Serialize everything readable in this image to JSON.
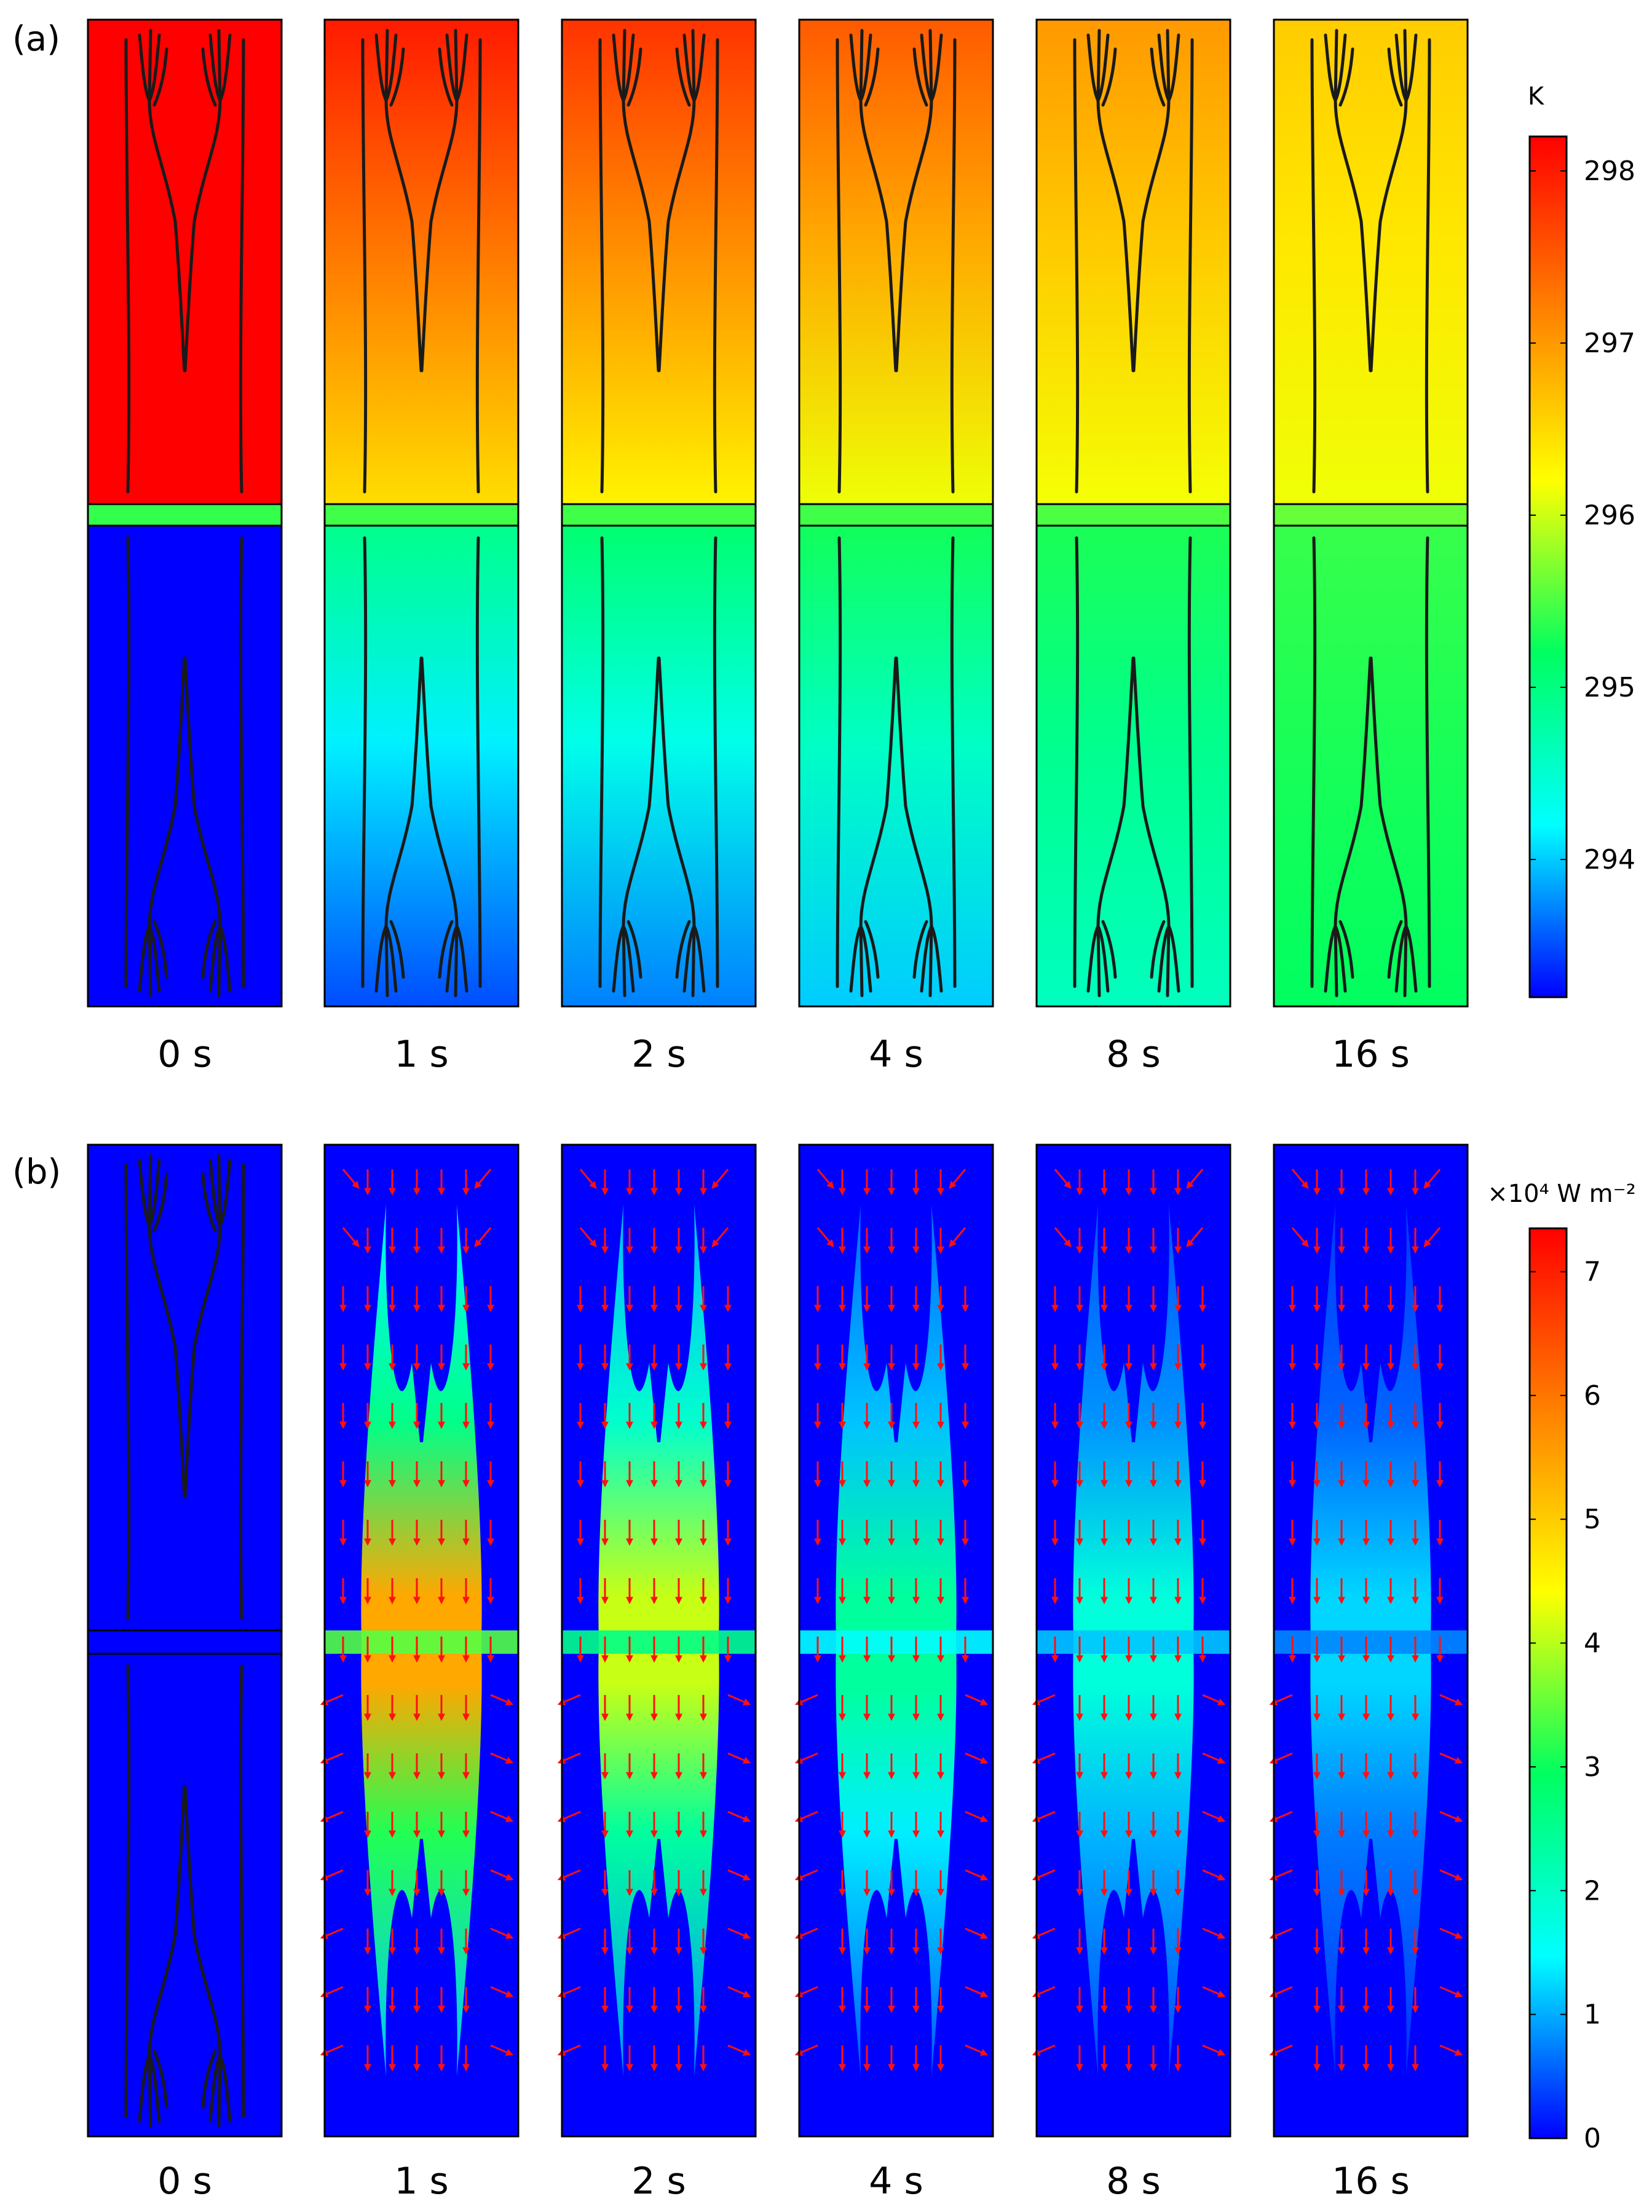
{
  "panels": [
    {
      "label": "(a)",
      "quantity": "temperature",
      "colorbar": {
        "unit": "K",
        "ticks": [
          "298",
          "297",
          "296",
          "295",
          "294"
        ],
        "tick_values": [
          298,
          297,
          296,
          295,
          294
        ],
        "min": 293.2,
        "max": 298.2
      },
      "frames": [
        {
          "time": "0 s",
          "t": 0,
          "T_hot": 298.2,
          "T_cold": 293.2,
          "hot_grad": 0.0,
          "cold_grad": 0.0
        },
        {
          "time": "1 s",
          "t": 1,
          "T_hot": 298.0,
          "T_cold": 293.5,
          "hot_grad": 0.55,
          "cold_grad": 0.55
        },
        {
          "time": "2 s",
          "t": 2,
          "T_hot": 297.8,
          "T_cold": 293.7,
          "hot_grad": 0.6,
          "cold_grad": 0.6
        },
        {
          "time": "4 s",
          "t": 4,
          "T_hot": 297.5,
          "T_cold": 294.0,
          "hot_grad": 0.65,
          "cold_grad": 0.65
        },
        {
          "time": "8 s",
          "t": 8,
          "T_hot": 297.0,
          "T_cold": 294.6,
          "hot_grad": 0.6,
          "cold_grad": 0.6
        },
        {
          "time": "16 s",
          "t": 16,
          "T_hot": 296.6,
          "T_cold": 295.2,
          "hot_grad": 0.55,
          "cold_grad": 0.55
        }
      ]
    },
    {
      "label": "(b)",
      "quantity": "heat flux",
      "colorbar": {
        "unit": "×10⁴ W m⁻²",
        "ticks": [
          "7",
          "6",
          "5",
          "4",
          "3",
          "2",
          "1",
          "0"
        ],
        "tick_values": [
          7,
          6,
          5,
          4,
          3,
          2,
          1,
          0
        ],
        "min": 0,
        "max": 7.35
      },
      "frames": [
        {
          "time": "0 s",
          "t": 0,
          "peak_flux": 0.0,
          "arrows": false
        },
        {
          "time": "1 s",
          "t": 1,
          "peak_flux": 5.7,
          "arrows": true
        },
        {
          "time": "2 s",
          "t": 2,
          "peak_flux": 4.3,
          "arrows": true
        },
        {
          "time": "4 s",
          "t": 4,
          "peak_flux": 2.5,
          "arrows": true
        },
        {
          "time": "8 s",
          "t": 8,
          "peak_flux": 1.9,
          "arrows": true
        },
        {
          "time": "16 s",
          "t": 16,
          "peak_flux": 1.3,
          "arrows": true
        }
      ]
    }
  ],
  "colors": {
    "colormap": [
      "#0000ff",
      "#00ffff",
      "#00ff60",
      "#ffff00",
      "#ff8000",
      "#ff0000"
    ],
    "arrow": "#ff1010",
    "outline": "#1a1a1a"
  }
}
